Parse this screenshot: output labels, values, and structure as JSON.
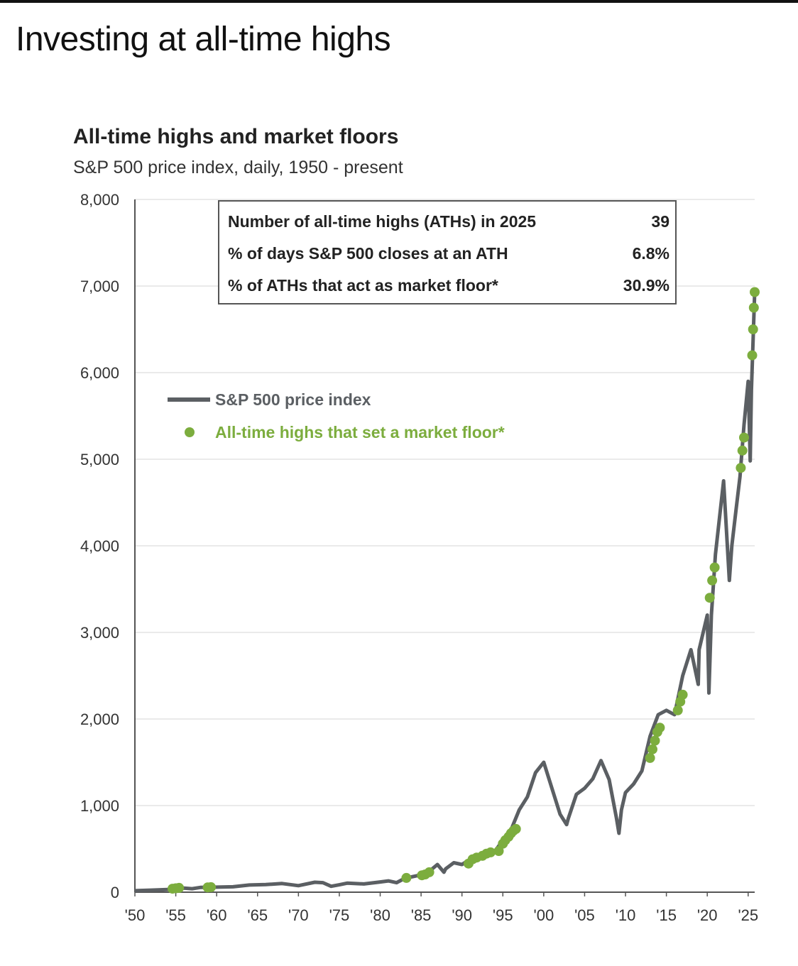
{
  "page_title": "Investing at all-time highs",
  "chart_data": {
    "type": "line",
    "title": "All-time highs and market floors",
    "subtitle": "S&P 500 price index, daily, 1950 - present",
    "xlabel": "",
    "ylabel": "",
    "ylim": [
      0,
      8000
    ],
    "xlim": [
      1950,
      2025.8
    ],
    "y_ticks": [
      "0",
      "1,000",
      "2,000",
      "3,000",
      "4,000",
      "5,000",
      "6,000",
      "7,000",
      "8,000"
    ],
    "x_ticks": [
      "'50",
      "'55",
      "'60",
      "'65",
      "'70",
      "'75",
      "'80",
      "'85",
      "'90",
      "'95",
      "'00",
      "'05",
      "'10",
      "'15",
      "'20",
      "'25"
    ],
    "grid": true,
    "legend": [
      {
        "label": "S&P 500 price index",
        "marker": "line",
        "color": "#5b5f63"
      },
      {
        "label": "All-time highs that set a market floor*",
        "marker": "dot",
        "color": "#7cad3e"
      }
    ],
    "series": [
      {
        "name": "S&P 500 price index",
        "color": "#5b5f63",
        "points": [
          [
            1950,
            17
          ],
          [
            1952,
            24
          ],
          [
            1954,
            30
          ],
          [
            1955,
            45
          ],
          [
            1956,
            47
          ],
          [
            1957,
            40
          ],
          [
            1958,
            55
          ],
          [
            1960,
            58
          ],
          [
            1962,
            62
          ],
          [
            1964,
            83
          ],
          [
            1966,
            88
          ],
          [
            1968,
            100
          ],
          [
            1970,
            75
          ],
          [
            1972,
            115
          ],
          [
            1973,
            110
          ],
          [
            1974,
            68
          ],
          [
            1975,
            85
          ],
          [
            1976,
            105
          ],
          [
            1978,
            95
          ],
          [
            1980,
            118
          ],
          [
            1981,
            130
          ],
          [
            1982,
            110
          ],
          [
            1983,
            160
          ],
          [
            1985,
            200
          ],
          [
            1986,
            240
          ],
          [
            1987,
            320
          ],
          [
            1987.8,
            230
          ],
          [
            1988,
            270
          ],
          [
            1989,
            340
          ],
          [
            1990,
            320
          ],
          [
            1991,
            380
          ],
          [
            1992,
            420
          ],
          [
            1993,
            460
          ],
          [
            1994,
            470
          ],
          [
            1995,
            600
          ],
          [
            1996,
            720
          ],
          [
            1997,
            950
          ],
          [
            1998,
            1100
          ],
          [
            1999,
            1380
          ],
          [
            2000,
            1500
          ],
          [
            2001,
            1200
          ],
          [
            2002,
            900
          ],
          [
            2002.8,
            780
          ],
          [
            2003,
            850
          ],
          [
            2004,
            1130
          ],
          [
            2005,
            1200
          ],
          [
            2006,
            1310
          ],
          [
            2007,
            1520
          ],
          [
            2008,
            1300
          ],
          [
            2008.9,
            850
          ],
          [
            2009.2,
            680
          ],
          [
            2009.5,
            950
          ],
          [
            2010,
            1150
          ],
          [
            2011,
            1250
          ],
          [
            2012,
            1400
          ],
          [
            2013,
            1800
          ],
          [
            2014,
            2050
          ],
          [
            2015,
            2100
          ],
          [
            2016,
            2050
          ],
          [
            2017,
            2500
          ],
          [
            2018,
            2800
          ],
          [
            2018.9,
            2400
          ],
          [
            2019,
            2800
          ],
          [
            2020,
            3200
          ],
          [
            2020.2,
            2300
          ],
          [
            2020.5,
            3200
          ],
          [
            2021,
            3900
          ],
          [
            2022,
            4750
          ],
          [
            2022.7,
            3600
          ],
          [
            2023,
            4000
          ],
          [
            2023.5,
            4400
          ],
          [
            2024,
            4800
          ],
          [
            2024.5,
            5400
          ],
          [
            2025,
            5900
          ],
          [
            2025.25,
            4980
          ],
          [
            2025.4,
            5800
          ],
          [
            2025.8,
            6930
          ]
        ]
      },
      {
        "name": "All-time highs that set a market floor*",
        "color": "#7cad3e",
        "points": [
          [
            1954.6,
            40
          ],
          [
            1955,
            45
          ],
          [
            1955.4,
            50
          ],
          [
            1958.9,
            55
          ],
          [
            1959.3,
            58
          ],
          [
            1983.2,
            165
          ],
          [
            1985.1,
            195
          ],
          [
            1985.5,
            205
          ],
          [
            1986,
            230
          ],
          [
            1990.8,
            330
          ],
          [
            1991.3,
            380
          ],
          [
            1991.8,
            400
          ],
          [
            1992.5,
            420
          ],
          [
            1993,
            445
          ],
          [
            1993.5,
            460
          ],
          [
            1994.5,
            475
          ],
          [
            1995,
            560
          ],
          [
            1995.3,
            600
          ],
          [
            1995.7,
            640
          ],
          [
            1996,
            680
          ],
          [
            1996.3,
            710
          ],
          [
            1996.6,
            730
          ],
          [
            2013,
            1550
          ],
          [
            2013.3,
            1650
          ],
          [
            2013.6,
            1750
          ],
          [
            2013.9,
            1850
          ],
          [
            2014.2,
            1900
          ],
          [
            2016.4,
            2100
          ],
          [
            2016.7,
            2200
          ],
          [
            2017,
            2280
          ],
          [
            2020.3,
            3400
          ],
          [
            2020.6,
            3600
          ],
          [
            2020.9,
            3750
          ],
          [
            2024.1,
            4900
          ],
          [
            2024.3,
            5100
          ],
          [
            2024.5,
            5250
          ],
          [
            2025.5,
            6200
          ],
          [
            2025.6,
            6500
          ],
          [
            2025.7,
            6750
          ],
          [
            2025.8,
            6930
          ]
        ]
      }
    ]
  },
  "stats_box": {
    "rows": [
      {
        "label": "Number of all-time highs (ATHs) in 2025",
        "value": "39"
      },
      {
        "label": "% of days S&P 500 closes at an ATH",
        "value": "6.8%"
      },
      {
        "label": "% of ATHs that act as market floor*",
        "value": "30.9%"
      }
    ]
  }
}
